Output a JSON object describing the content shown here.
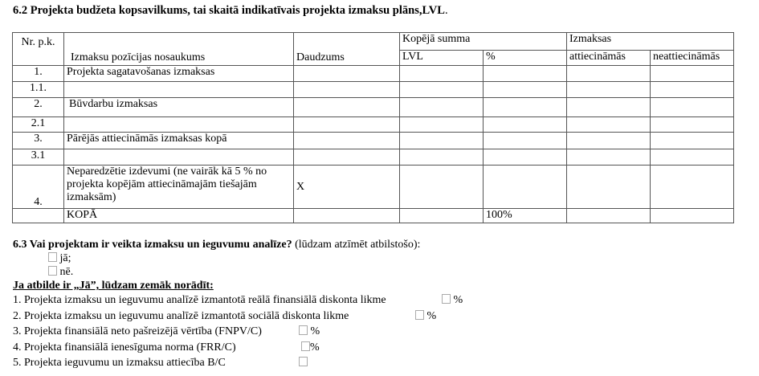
{
  "section62": {
    "title": "6.2 Projekta budžeta kopsavilkums, tai skaitā indikatīvais projekta izmaksu plāns,LVL",
    "title_end": "."
  },
  "table": {
    "headers": {
      "nr": "Nr. p.k.",
      "name": "Izmaksu pozīcijas nosaukums",
      "qty": "Daudzums",
      "total": "Kopējā summa",
      "lvl": "LVL",
      "pct": "%",
      "costs": "Izmaksas",
      "eligible": "attiecināmās",
      "ineligible": "neattiecināmās"
    },
    "rows": [
      {
        "nr": "1.",
        "name": "Projekta sagatavošanas izmaksas",
        "qty": "",
        "lvl": "",
        "pct": ""
      },
      {
        "nr": "1.1.",
        "name": "",
        "qty": "",
        "lvl": "",
        "pct": ""
      },
      {
        "nr": "2.",
        "name": "Būvdarbu izmaksas",
        "qty": "",
        "lvl": "",
        "pct": ""
      },
      {
        "nr": "2.1",
        "name": "",
        "qty": "",
        "lvl": "",
        "pct": ""
      },
      {
        "nr": "3.",
        "name": "Pārējās attiecināmās izmaksas kopā",
        "qty": "",
        "lvl": "",
        "pct": ""
      },
      {
        "nr": "3.1",
        "name": "",
        "qty": "",
        "lvl": "",
        "pct": ""
      },
      {
        "nr": "4.",
        "name": "Neparedzētie izdevumi (ne vairāk kā 5 % no projekta kopējām attiecināmajām tiešajām izmaksām)",
        "qty": "X",
        "lvl": "",
        "pct": ""
      },
      {
        "nr": "",
        "name": "KOPĀ",
        "qty": "",
        "lvl": "",
        "pct": "100%"
      }
    ]
  },
  "section63": {
    "question": "6.3 Vai projektam ir veikta izmaksu un ieguvumu analīze?",
    "hint": " (lūdzam atzīmēt atbilstošo):",
    "options": [
      "jā;",
      "nē."
    ],
    "subheading": "Ja atbilde ir „Jā”, lūdzam zemāk norādīt:",
    "items": [
      {
        "label": "1. Projekta izmaksu un ieguvumu analīzē izmantotā reālā finansiālā diskonta likme",
        "unit": " %"
      },
      {
        "label": "2. Projekta izmaksu un ieguvumu analīzē izmantotā sociālā diskonta likme",
        "unit": " %"
      },
      {
        "label": "3. Projekta finansiālā neto pašreizējā vērtība (FNPV/C)",
        "unit": " %"
      },
      {
        "label": "4. Projekta finansiālā ienesīguma norma (FRR/C)",
        "unit": "%"
      },
      {
        "label": "5. Projekta ieguvumu un izmaksu attiecība B/C",
        "unit": ""
      }
    ]
  }
}
